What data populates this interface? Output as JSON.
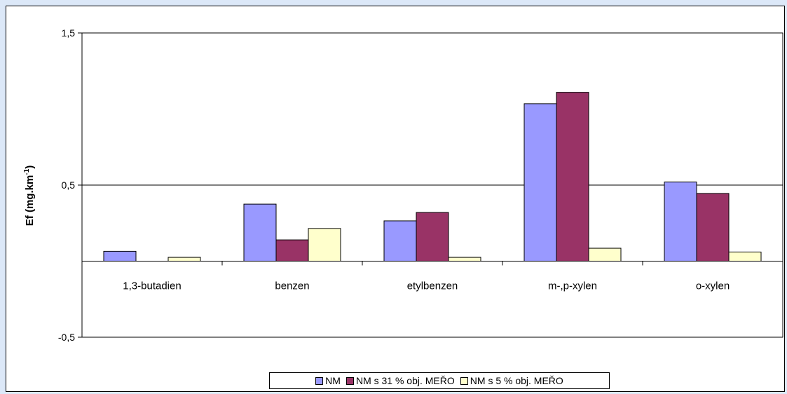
{
  "chart_data": {
    "type": "bar",
    "title": "",
    "xlabel": "",
    "ylabel": "Ef (mg.km-1)",
    "ylabel_main": "Ef (mg.km",
    "ylabel_sup": "-1",
    "ylabel_close": ")",
    "ylim": [
      -0.5,
      1.5
    ],
    "yticks": [
      -0.5,
      0.5,
      1.5
    ],
    "ytick_labels": [
      "-0,5",
      "0,5",
      "1,5"
    ],
    "grid": true,
    "legend_position": "bottom",
    "categories": [
      "1,3-butadien",
      "benzen",
      "etylbenzen",
      "m-,p-xylen",
      "o-xylen"
    ],
    "series": [
      {
        "name": "NM",
        "color": "#9999ff",
        "values": [
          0.065,
          0.375,
          0.265,
          1.035,
          0.52
        ]
      },
      {
        "name": "NM s 31 % obj. MEŘO",
        "color": "#993366",
        "values": [
          0.0,
          0.14,
          0.32,
          1.11,
          0.445
        ]
      },
      {
        "name": "NM s 5 % obj. MEŘO",
        "color": "#ffffcc",
        "values": [
          0.025,
          0.215,
          0.025,
          0.085,
          0.06
        ]
      }
    ]
  }
}
